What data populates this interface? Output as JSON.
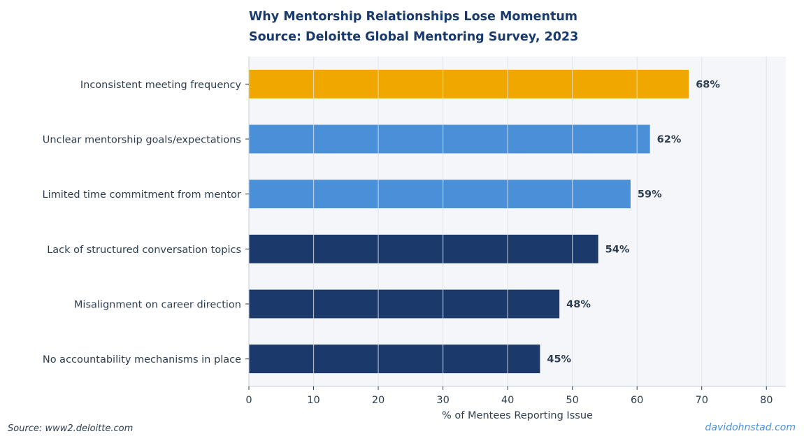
{
  "chart_data": {
    "type": "bar",
    "orientation": "horizontal",
    "title": "Why Mentorship Relationships Lose Momentum",
    "subtitle": "Source: Deloitte Global Mentoring Survey, 2023",
    "xlabel": "% of Mentees Reporting Issue",
    "ylabel": "",
    "xlim": [
      0,
      83
    ],
    "xticks": [
      0,
      10,
      20,
      30,
      40,
      50,
      60,
      70,
      80
    ],
    "grid": true,
    "categories": [
      "No accountability mechanisms in place",
      "Misalignment on career direction",
      "Lack of structured conversation topics",
      "Limited time commitment from mentor",
      "Unclear mentorship goals/expectations",
      "Inconsistent meeting frequency"
    ],
    "values": [
      45,
      48,
      54,
      59,
      62,
      68
    ],
    "value_labels": [
      "45%",
      "48%",
      "54%",
      "59%",
      "62%",
      "68%"
    ],
    "bar_colors": [
      "#1b3a6b",
      "#1b3a6b",
      "#1b3a6b",
      "#4a90d9",
      "#4a90d9",
      "#f0a800"
    ]
  },
  "footer": {
    "source": "Source: www2.deloitte.com",
    "credit": "davidohnstad.com"
  },
  "colors": {
    "title": "#1a3a6b",
    "text": "#2c3e50",
    "plot_background": "#f4f6fa",
    "grid": "#dde1e8"
  }
}
